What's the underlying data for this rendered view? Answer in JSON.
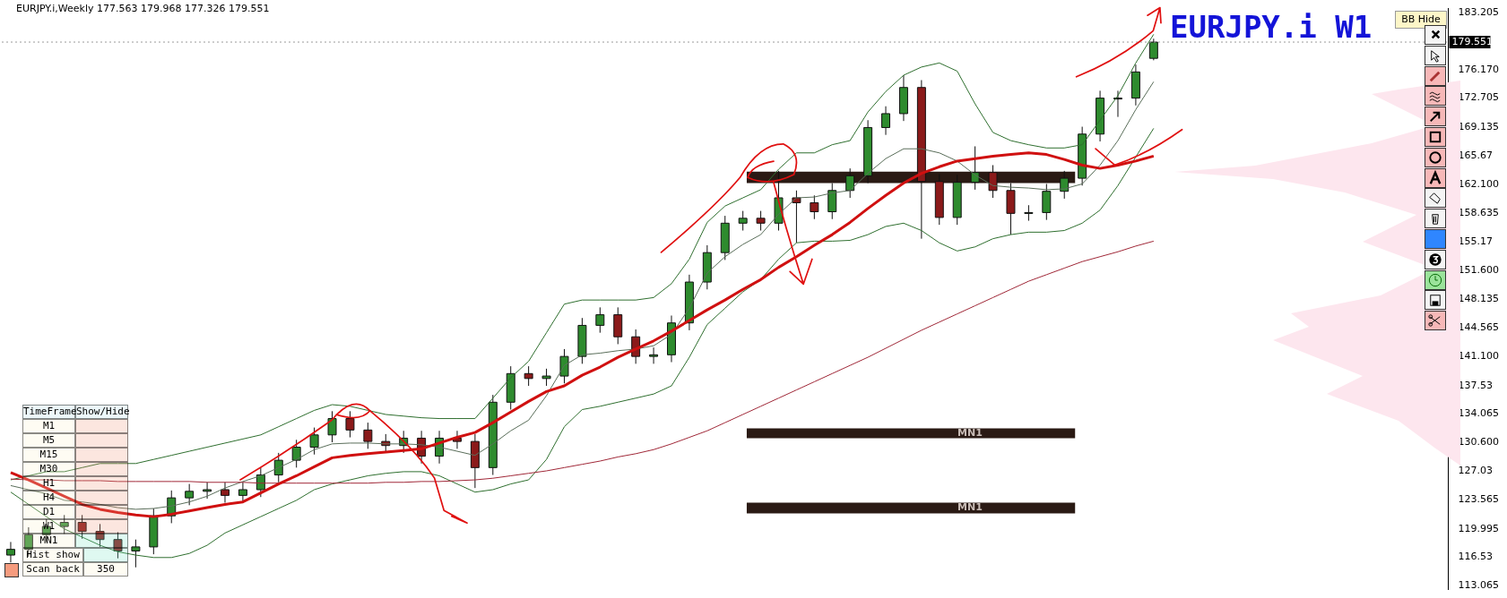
{
  "chart_data": {
    "type": "candlestick",
    "title": "EURJPY.i,Weekly  177.563 179.968 177.326 179.551",
    "subtitle": "EURJPY.i W1",
    "categories": [
      null,
      null,
      null,
      null,
      null,
      null,
      null,
      null,
      null,
      null,
      null,
      null,
      null,
      null,
      null,
      null,
      null,
      null,
      null,
      null,
      null,
      null,
      null,
      null,
      null,
      null,
      null,
      null,
      null,
      null,
      null,
      null,
      null,
      null,
      null,
      null,
      null,
      null,
      null,
      null,
      null,
      null,
      null,
      null,
      null,
      null,
      null,
      null,
      null,
      null,
      null,
      null,
      null,
      null,
      null,
      null,
      null,
      null,
      null,
      null,
      null,
      null,
      null,
      null,
      null,
      null,
      null,
      null,
      null,
      null,
      null,
      null,
      null,
      null,
      null,
      null,
      null,
      null,
      null,
      null,
      null
    ],
    "ohlc": [
      [
        116.8,
        118.4,
        115.9,
        117.5
      ],
      [
        117.5,
        120.2,
        116.6,
        119.3
      ],
      [
        119.3,
        121.2,
        118.4,
        120.3
      ],
      [
        120.3,
        121.7,
        119.4,
        120.8
      ],
      [
        120.8,
        121.7,
        118.8,
        119.7
      ],
      [
        119.7,
        120.6,
        117.8,
        118.7
      ],
      [
        118.7,
        119.6,
        116.4,
        117.3
      ],
      [
        117.3,
        118.7,
        115.3,
        117.8
      ],
      [
        117.8,
        122.5,
        116.9,
        121.6
      ],
      [
        121.6,
        124.7,
        120.7,
        123.8
      ],
      [
        123.8,
        125.5,
        122.9,
        124.6
      ],
      [
        124.6,
        125.7,
        123.7,
        124.8
      ],
      [
        124.8,
        125.7,
        123.2,
        124.1
      ],
      [
        124.1,
        125.7,
        123.2,
        124.8
      ],
      [
        124.8,
        127.5,
        123.9,
        126.6
      ],
      [
        126.6,
        129.3,
        125.7,
        128.4
      ],
      [
        128.4,
        130.9,
        127.5,
        130.0
      ],
      [
        130.0,
        132.4,
        129.1,
        131.5
      ],
      [
        131.5,
        134.4,
        130.6,
        133.5
      ],
      [
        133.5,
        134.4,
        131.2,
        132.1
      ],
      [
        132.1,
        133.0,
        129.8,
        130.7
      ],
      [
        130.7,
        131.6,
        129.3,
        130.2
      ],
      [
        130.2,
        132.0,
        129.3,
        131.1
      ],
      [
        131.1,
        132.0,
        128.0,
        128.9
      ],
      [
        128.9,
        132.0,
        128.0,
        131.1
      ],
      [
        131.1,
        132.0,
        129.8,
        130.7
      ],
      [
        130.7,
        131.6,
        125.0,
        127.5
      ],
      [
        127.5,
        136.4,
        126.6,
        135.5
      ],
      [
        135.5,
        139.9,
        134.6,
        139.0
      ],
      [
        139.0,
        139.9,
        137.5,
        138.4
      ],
      [
        138.4,
        139.6,
        137.5,
        138.7
      ],
      [
        138.7,
        142.0,
        137.8,
        141.1
      ],
      [
        141.1,
        145.8,
        140.2,
        144.9
      ],
      [
        144.9,
        147.1,
        144.0,
        146.2
      ],
      [
        146.2,
        147.1,
        142.6,
        143.5
      ],
      [
        143.5,
        144.4,
        140.2,
        141.1
      ],
      [
        141.1,
        142.2,
        140.2,
        141.3
      ],
      [
        141.3,
        146.1,
        140.4,
        145.2
      ],
      [
        145.2,
        151.1,
        144.3,
        150.2
      ],
      [
        150.2,
        154.7,
        149.3,
        153.8
      ],
      [
        153.8,
        158.3,
        152.9,
        157.4
      ],
      [
        157.4,
        158.9,
        156.5,
        158.0
      ],
      [
        158.0,
        158.9,
        156.5,
        157.4
      ],
      [
        157.4,
        163.8,
        156.5,
        160.5
      ],
      [
        160.5,
        161.4,
        155.0,
        159.9
      ],
      [
        159.9,
        160.8,
        157.9,
        158.8
      ],
      [
        158.8,
        162.3,
        157.9,
        161.4
      ],
      [
        161.4,
        164.1,
        160.5,
        163.2
      ],
      [
        163.2,
        170.0,
        162.3,
        169.1
      ],
      [
        169.1,
        171.7,
        168.2,
        170.8
      ],
      [
        170.8,
        175.5,
        169.9,
        174.0
      ],
      [
        174.0,
        174.9,
        155.5,
        162.5
      ],
      [
        162.5,
        163.4,
        157.2,
        158.1
      ],
      [
        158.1,
        163.3,
        157.2,
        162.4
      ],
      [
        162.4,
        166.8,
        161.5,
        163.6
      ],
      [
        163.6,
        164.5,
        160.5,
        161.4
      ],
      [
        161.4,
        162.3,
        156.0,
        158.6
      ],
      [
        158.6,
        159.6,
        157.7,
        158.7
      ],
      [
        158.7,
        162.2,
        157.8,
        161.3
      ],
      [
        161.3,
        163.8,
        160.4,
        162.9
      ],
      [
        162.9,
        169.2,
        162.0,
        168.3
      ],
      [
        168.3,
        173.6,
        167.4,
        172.7
      ],
      [
        172.7,
        173.6,
        170.4,
        172.7
      ],
      [
        172.7,
        176.8,
        171.8,
        175.9
      ],
      [
        177.563,
        179.968,
        177.326,
        179.551
      ],
      null,
      null,
      null,
      null,
      null,
      null,
      null,
      null,
      null,
      null,
      null,
      null,
      null,
      null,
      null,
      null
    ],
    "series": [
      {
        "type": "line",
        "color": "#d01010",
        "values": [
          126.9,
          126,
          125,
          124,
          123,
          122.4,
          122,
          121.7,
          121.5,
          121.8,
          122.2,
          122.6,
          123,
          123.3,
          124.4,
          125.5,
          126.5,
          127.6,
          128.7,
          129,
          129.2,
          129.4,
          129.6,
          129.8,
          130.5,
          131.2,
          131.8,
          133,
          134.3,
          135.6,
          136.8,
          137.5,
          138.8,
          139.8,
          141,
          142,
          143,
          144.2,
          145.5,
          146.8,
          148,
          149.3,
          150.5,
          152,
          153.3,
          154.7,
          156,
          157.5,
          159.2,
          160.8,
          162.3,
          163.5,
          164.3,
          165,
          165.3,
          165.6,
          165.8,
          166,
          165.8,
          165.2,
          164.5,
          164.1,
          164.5,
          165,
          165.6,
          null,
          null,
          null,
          null,
          null,
          null,
          null,
          null,
          null,
          null,
          null,
          null,
          null,
          null,
          null,
          null
        ]
      },
      {
        "type": "line",
        "color": "#a02838",
        "values": [
          126.1,
          126,
          126,
          125.9,
          125.9,
          125.9,
          125.8,
          125.8,
          125.8,
          125.8,
          125.8,
          125.7,
          125.7,
          125.7,
          125.6,
          125.6,
          125.6,
          125.6,
          125.6,
          125.6,
          125.6,
          125.7,
          125.7,
          125.8,
          125.8,
          125.9,
          126,
          126.2,
          126.5,
          126.8,
          127.1,
          127.5,
          127.9,
          128.3,
          128.8,
          129.2,
          129.7,
          130.4,
          131.2,
          132,
          133,
          134,
          135,
          136,
          137,
          138,
          139,
          140,
          141,
          142.1,
          143.2,
          144.3,
          145.3,
          146.3,
          147.3,
          148.3,
          149.3,
          150.3,
          151.1,
          151.9,
          152.7,
          153.3,
          153.9,
          154.6,
          155.2,
          null,
          null,
          null,
          null,
          null,
          null,
          null,
          null,
          null,
          null,
          null,
          null,
          null,
          null,
          null,
          null
        ]
      },
      {
        "type": "line",
        "color": "#2f6f2f",
        "values": [
          126,
          126.5,
          127,
          127,
          127.5,
          128,
          128,
          128,
          128.5,
          129,
          129.5,
          130,
          130.5,
          131,
          131.5,
          132.5,
          133.5,
          134.5,
          135.2,
          135,
          134.5,
          134,
          133.8,
          133.6,
          133.5,
          133.5,
          133.5,
          136,
          138.5,
          140.5,
          144,
          147.5,
          148,
          148,
          148,
          148,
          148.3,
          150,
          153,
          157.5,
          159.5,
          160.5,
          161.5,
          164,
          166,
          166,
          167,
          167.5,
          171,
          173.5,
          175.5,
          176.5,
          177,
          176,
          172,
          168.5,
          167.5,
          167,
          166.6,
          166.6,
          167,
          170,
          173,
          177,
          180.5,
          null,
          null,
          null,
          null,
          null,
          null,
          null,
          null,
          null,
          null,
          null,
          null,
          null,
          null,
          null,
          null
        ]
      },
      {
        "type": "line",
        "color": "#5a6e5a",
        "values": [
          125.3,
          124.8,
          124.3,
          123.5,
          123.3,
          123,
          122.6,
          122.4,
          122.5,
          122.8,
          123.3,
          124,
          125,
          125.8,
          126.5,
          127.5,
          128.5,
          129.7,
          130.4,
          130.5,
          130.5,
          130.4,
          130.4,
          130.3,
          130,
          129.5,
          129,
          130.4,
          132,
          133.3,
          136.3,
          140,
          141.3,
          141.5,
          141.8,
          142,
          142.4,
          143.8,
          147,
          151.3,
          153.3,
          154.8,
          156,
          158.5,
          160.5,
          160.6,
          161.1,
          161.4,
          163.5,
          165.3,
          166.5,
          166.5,
          166,
          165,
          163.3,
          162,
          161.8,
          161.7,
          161.5,
          161.6,
          162.2,
          164.5,
          167.5,
          171.3,
          174.7,
          null,
          null,
          null,
          null,
          null,
          null,
          null,
          null,
          null,
          null,
          null,
          null,
          null,
          null,
          null,
          null
        ]
      },
      {
        "type": "line",
        "color": "#2f6f2f",
        "values": [
          124.5,
          123,
          121.5,
          120,
          119,
          118,
          117.2,
          116.8,
          116.5,
          116.5,
          117,
          118,
          119.5,
          120.5,
          121.5,
          122.5,
          123.5,
          124.8,
          125.5,
          126,
          126.5,
          126.8,
          127,
          127,
          126.5,
          125.5,
          124.5,
          124.8,
          125.5,
          126,
          128.5,
          132.5,
          134.6,
          135,
          135.5,
          136,
          136.5,
          137.5,
          141,
          145,
          147,
          149,
          150.5,
          153,
          155,
          155.2,
          155.2,
          155.3,
          156,
          157,
          157.4,
          156.5,
          155,
          154,
          154.5,
          155.5,
          156,
          156.3,
          156.3,
          156.5,
          157.4,
          159,
          162,
          165.5,
          169,
          null,
          null,
          null,
          null,
          null,
          null,
          null,
          null,
          null,
          null,
          null,
          null,
          null,
          null,
          null,
          null
        ]
      }
    ],
    "ylim": [
      112.6,
      183.65
    ],
    "yticks": [
      183.205,
      {
        "value": 176.17,
        "label": "176.170"
      },
      172.705,
      169.135,
      165.67,
      {
        "value": 162.1,
        "label": "162.100"
      },
      158.635,
      155.17,
      {
        "value": 151.6,
        "label": "151.600"
      },
      148.135,
      144.565,
      {
        "value": 141.1,
        "label": "141.100"
      },
      137.53,
      134.065,
      {
        "value": 130.6,
        "label": "130.600"
      },
      127.03,
      123.565,
      119.995,
      116.53,
      113.065
    ],
    "ref_lines": [
      {
        "axis": "y",
        "value": 179.551,
        "label": "179.551"
      }
    ],
    "bands": [
      {
        "axis": "y",
        "from": 162.3,
        "to": 163.7,
        "color": "#2a1a14"
      },
      {
        "axis": "y",
        "from": 131.1,
        "to": 132.3,
        "label": "MN1",
        "color": "#2a1a14"
      },
      {
        "axis": "y",
        "from": 121.9,
        "to": 123.2,
        "label": "MN1",
        "color": "#2a1a14"
      }
    ],
    "annotations": [
      "TimeFrame",
      "Show/Hide",
      "M1",
      "M5",
      "M15",
      "M30",
      "H1",
      "H4",
      "D1",
      "W1",
      "MN1",
      "Hist show",
      "Scan back",
      "350",
      "BB Hide"
    ],
    "grid": false,
    "legend": false,
    "tick_labels": "y"
  }
}
